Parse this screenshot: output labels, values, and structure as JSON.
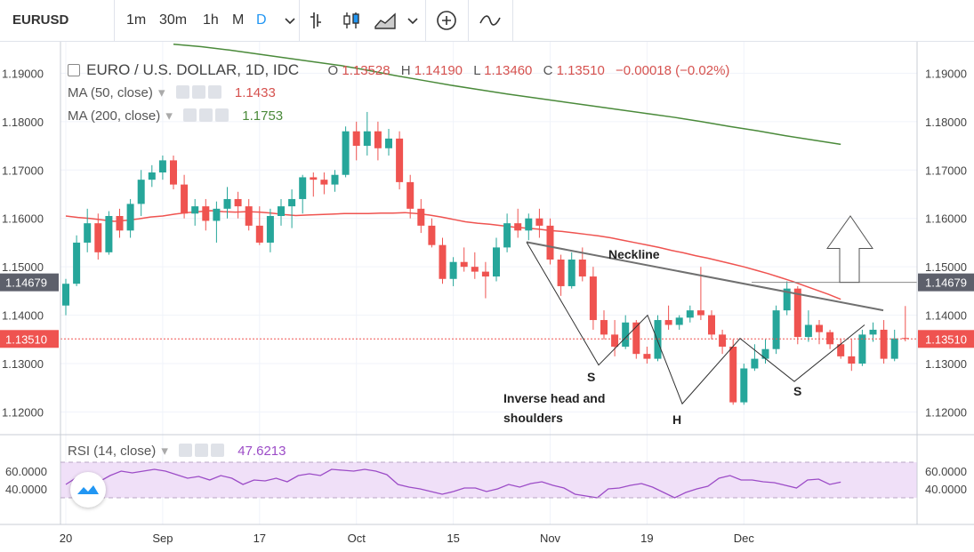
{
  "toolbar": {
    "symbol": "EURUSD",
    "intervals": [
      "1m",
      "30m",
      "1h",
      "M",
      "D"
    ],
    "active_interval": "D",
    "icons": [
      "chevron-down-icon",
      "bar-style-icon",
      "candle-style-icon",
      "area-style-icon",
      "chevron-down-icon",
      "add-compare-icon",
      "indicators-icon"
    ]
  },
  "legend": {
    "main": {
      "title": "EURO / U.S. DOLLAR, 1D, IDC",
      "o_label": "O",
      "o": "1.13528",
      "h_label": "H",
      "h": "1.14190",
      "l_label": "L",
      "l": "1.13460",
      "c_label": "C",
      "c": "1.13510",
      "change": "−0.00018 (−0.02%)"
    },
    "ma50": {
      "label": "MA (50, close)",
      "value": "1.1433"
    },
    "ma200": {
      "label": "MA (200, close)",
      "value": "1.1753"
    },
    "rsi": {
      "label": "RSI (14, close)",
      "value": "47.6213"
    }
  },
  "colors": {
    "up": "#26a69a",
    "down": "#ef5350",
    "ma50": "#ef5350",
    "ma200": "#4a8a3a",
    "rsi": "#9c4cc7",
    "rsi_band": "#f0e0f8",
    "neckline": "#707070",
    "accent": "#2196f3"
  },
  "chart_data": {
    "type": "candlestick",
    "price_axis": [
      "1.19000",
      "1.18000",
      "1.17000",
      "1.16000",
      "1.15000",
      "1.14000",
      "1.13000",
      "1.12000"
    ],
    "price_range": [
      1.1155,
      1.1965
    ],
    "price_markers": [
      {
        "value": "1.14679",
        "style": "gray"
      },
      {
        "value": "1.13510",
        "style": "red"
      }
    ],
    "time_axis": [
      "20",
      "Sep",
      "17",
      "Oct",
      "15",
      "Nov",
      "19",
      "Dec"
    ],
    "time_axis_bar_index": [
      0,
      9,
      18,
      27,
      36,
      45,
      54,
      63
    ],
    "ohlc": [
      [
        1.142,
        1.1475,
        1.14,
        1.1465
      ],
      [
        1.1465,
        1.1565,
        1.146,
        1.155
      ],
      [
        1.155,
        1.162,
        1.153,
        1.159
      ],
      [
        1.159,
        1.161,
        1.1515,
        1.153
      ],
      [
        1.153,
        1.1615,
        1.1525,
        1.1605
      ],
      [
        1.1605,
        1.162,
        1.156,
        1.1575
      ],
      [
        1.1575,
        1.164,
        1.156,
        1.163
      ],
      [
        1.163,
        1.17,
        1.1605,
        1.168
      ],
      [
        1.168,
        1.171,
        1.1665,
        1.1695
      ],
      [
        1.1695,
        1.173,
        1.168,
        1.172
      ],
      [
        1.172,
        1.173,
        1.166,
        1.167
      ],
      [
        1.167,
        1.169,
        1.16,
        1.161
      ],
      [
        1.161,
        1.164,
        1.1585,
        1.1625
      ],
      [
        1.1625,
        1.164,
        1.1575,
        1.1595
      ],
      [
        1.1595,
        1.1635,
        1.155,
        1.162
      ],
      [
        1.162,
        1.1665,
        1.16,
        1.164
      ],
      [
        1.164,
        1.1655,
        1.16,
        1.1625
      ],
      [
        1.1625,
        1.164,
        1.1575,
        1.1585
      ],
      [
        1.1585,
        1.1625,
        1.1545,
        1.155
      ],
      [
        1.155,
        1.162,
        1.153,
        1.1605
      ],
      [
        1.1605,
        1.164,
        1.1585,
        1.1625
      ],
      [
        1.1625,
        1.166,
        1.158,
        1.164
      ],
      [
        1.164,
        1.169,
        1.161,
        1.1685
      ],
      [
        1.1685,
        1.1695,
        1.1645,
        1.168
      ],
      [
        1.168,
        1.1695,
        1.165,
        1.167
      ],
      [
        1.167,
        1.17,
        1.1655,
        1.169
      ],
      [
        1.169,
        1.179,
        1.1685,
        1.178
      ],
      [
        1.178,
        1.18,
        1.172,
        1.175
      ],
      [
        1.175,
        1.182,
        1.173,
        1.178
      ],
      [
        1.178,
        1.18,
        1.172,
        1.1745
      ],
      [
        1.1745,
        1.1785,
        1.173,
        1.1765
      ],
      [
        1.1765,
        1.178,
        1.166,
        1.1675
      ],
      [
        1.1675,
        1.169,
        1.16,
        1.162
      ],
      [
        1.162,
        1.164,
        1.157,
        1.1585
      ],
      [
        1.1585,
        1.16,
        1.154,
        1.1545
      ],
      [
        1.1545,
        1.156,
        1.1465,
        1.1475
      ],
      [
        1.1475,
        1.152,
        1.146,
        1.151
      ],
      [
        1.151,
        1.154,
        1.149,
        1.15
      ],
      [
        1.15,
        1.153,
        1.1475,
        1.149
      ],
      [
        1.149,
        1.151,
        1.1435,
        1.148
      ],
      [
        1.148,
        1.156,
        1.147,
        1.154
      ],
      [
        1.154,
        1.161,
        1.153,
        1.159
      ],
      [
        1.159,
        1.162,
        1.156,
        1.1575
      ],
      [
        1.1575,
        1.161,
        1.1555,
        1.16
      ],
      [
        1.16,
        1.162,
        1.156,
        1.1585
      ],
      [
        1.1585,
        1.16,
        1.1505,
        1.1515
      ],
      [
        1.1515,
        1.1525,
        1.144,
        1.146
      ],
      [
        1.146,
        1.153,
        1.1455,
        1.1515
      ],
      [
        1.1515,
        1.154,
        1.147,
        1.148
      ],
      [
        1.148,
        1.15,
        1.137,
        1.139
      ],
      [
        1.139,
        1.141,
        1.135,
        1.136
      ],
      [
        1.136,
        1.139,
        1.1315,
        1.1335
      ],
      [
        1.1335,
        1.14,
        1.133,
        1.1385
      ],
      [
        1.1385,
        1.139,
        1.131,
        1.132
      ],
      [
        1.132,
        1.1335,
        1.13,
        1.131
      ],
      [
        1.131,
        1.14,
        1.1305,
        1.139
      ],
      [
        1.139,
        1.142,
        1.137,
        1.138
      ],
      [
        1.138,
        1.14,
        1.137,
        1.1395
      ],
      [
        1.1395,
        1.142,
        1.1385,
        1.141
      ],
      [
        1.141,
        1.15,
        1.139,
        1.14
      ],
      [
        1.14,
        1.141,
        1.135,
        1.136
      ],
      [
        1.136,
        1.137,
        1.132,
        1.1335
      ],
      [
        1.1335,
        1.135,
        1.1215,
        1.122
      ],
      [
        1.122,
        1.13,
        1.1215,
        1.129
      ],
      [
        1.129,
        1.134,
        1.1285,
        1.131
      ],
      [
        1.131,
        1.135,
        1.13,
        1.133
      ],
      [
        1.133,
        1.142,
        1.132,
        1.141
      ],
      [
        1.141,
        1.147,
        1.14,
        1.1455
      ],
      [
        1.1455,
        1.146,
        1.134,
        1.1355
      ],
      [
        1.1355,
        1.141,
        1.1345,
        1.138
      ],
      [
        1.138,
        1.139,
        1.134,
        1.1365
      ],
      [
        1.1365,
        1.137,
        1.133,
        1.134
      ],
      [
        1.134,
        1.135,
        1.131,
        1.1315
      ],
      [
        1.1315,
        1.135,
        1.1285,
        1.13
      ],
      [
        1.13,
        1.137,
        1.1295,
        1.136
      ],
      [
        1.136,
        1.1385,
        1.1345,
        1.137
      ],
      [
        1.137,
        1.139,
        1.13,
        1.131
      ],
      [
        1.131,
        1.137,
        1.1305,
        1.1352
      ],
      [
        1.1353,
        1.1419,
        1.1346,
        1.1351
      ]
    ],
    "ma50_series": [
      1.1605,
      1.1602,
      1.16,
      1.1597,
      1.1594,
      1.1596,
      1.1599,
      1.1603,
      1.1605,
      1.1609,
      1.1612,
      1.1614,
      1.1616,
      1.1614,
      1.1613,
      1.1614,
      1.1613,
      1.1611,
      1.1608,
      1.1606,
      1.1607,
      1.1608,
      1.1609,
      1.161,
      1.161,
      1.161,
      1.1611,
      1.1611,
      1.1612,
      1.161,
      1.1607,
      1.1603,
      1.1598,
      1.1593,
      1.159,
      1.1588,
      1.1585,
      1.1582,
      1.158,
      1.1578,
      1.1575,
      1.1573,
      1.157,
      1.1567,
      1.1564,
      1.156,
      1.1555,
      1.155,
      1.1545,
      1.154,
      1.1534,
      1.1529,
      1.1523,
      1.1518,
      1.1512,
      1.1506,
      1.15,
      1.1493,
      1.1486,
      1.1478,
      1.147,
      1.1461,
      1.1452,
      1.1443,
      1.1433
    ],
    "ma200_series": [
      1.196,
      1.1955,
      1.1948,
      1.194,
      1.1932,
      1.1924,
      1.1916,
      1.1906,
      1.1895,
      1.1885,
      1.1875,
      1.1866,
      1.1857,
      1.1849,
      1.1841,
      1.1833,
      1.1825,
      1.1817,
      1.1809,
      1.18,
      1.179,
      1.1781,
      1.1771,
      1.1762,
      1.1753
    ],
    "rsi_axis": [
      "60.0000",
      "40.0000"
    ],
    "rsi_band": [
      30,
      70
    ],
    "rsi_series": [
      45,
      53,
      55,
      48,
      55,
      60,
      58,
      60,
      62,
      60,
      56,
      52,
      54,
      50,
      55,
      52,
      45,
      50,
      49,
      52,
      48,
      55,
      57,
      55,
      62,
      61,
      60,
      62,
      60,
      56,
      45,
      42,
      40,
      37,
      34,
      37,
      41,
      41,
      37,
      40,
      45,
      42,
      46,
      48,
      44,
      41,
      34,
      32,
      30,
      40,
      41,
      44,
      46,
      42,
      36,
      30,
      36,
      40,
      43,
      52,
      55,
      50,
      50,
      48,
      47,
      44,
      41,
      50,
      51,
      45,
      47.6
    ],
    "annotations": {
      "neckline_label": "Neckline",
      "pattern_label_line1": "Inverse head and",
      "pattern_label_line2": "shoulders",
      "left_shoulder": "S",
      "head": "H",
      "right_shoulder": "S"
    }
  }
}
